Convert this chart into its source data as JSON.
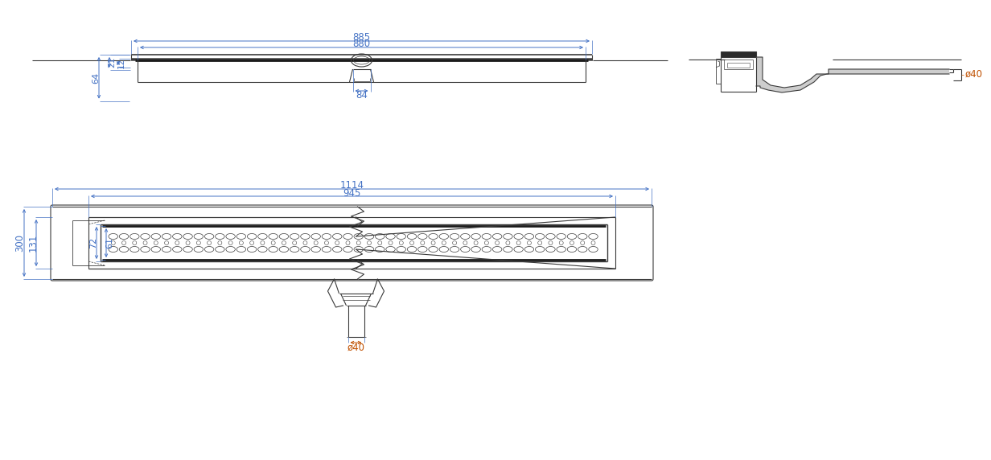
{
  "bg_color": "#ffffff",
  "line_color": "#3a3a3a",
  "dim_color": "#4472c4",
  "dim_color2": "#c05000",
  "dim_885": "885",
  "dim_880": "880",
  "dim_84": "84",
  "dim_64": "64",
  "dim_21": "21",
  "dim_12": "12",
  "dim_40_right": "ø40",
  "dim_1114": "1114",
  "dim_945": "945",
  "dim_300": "300",
  "dim_131": "131",
  "dim_72": "72",
  "dim_61": "61",
  "dim_40_bot": "ø40"
}
